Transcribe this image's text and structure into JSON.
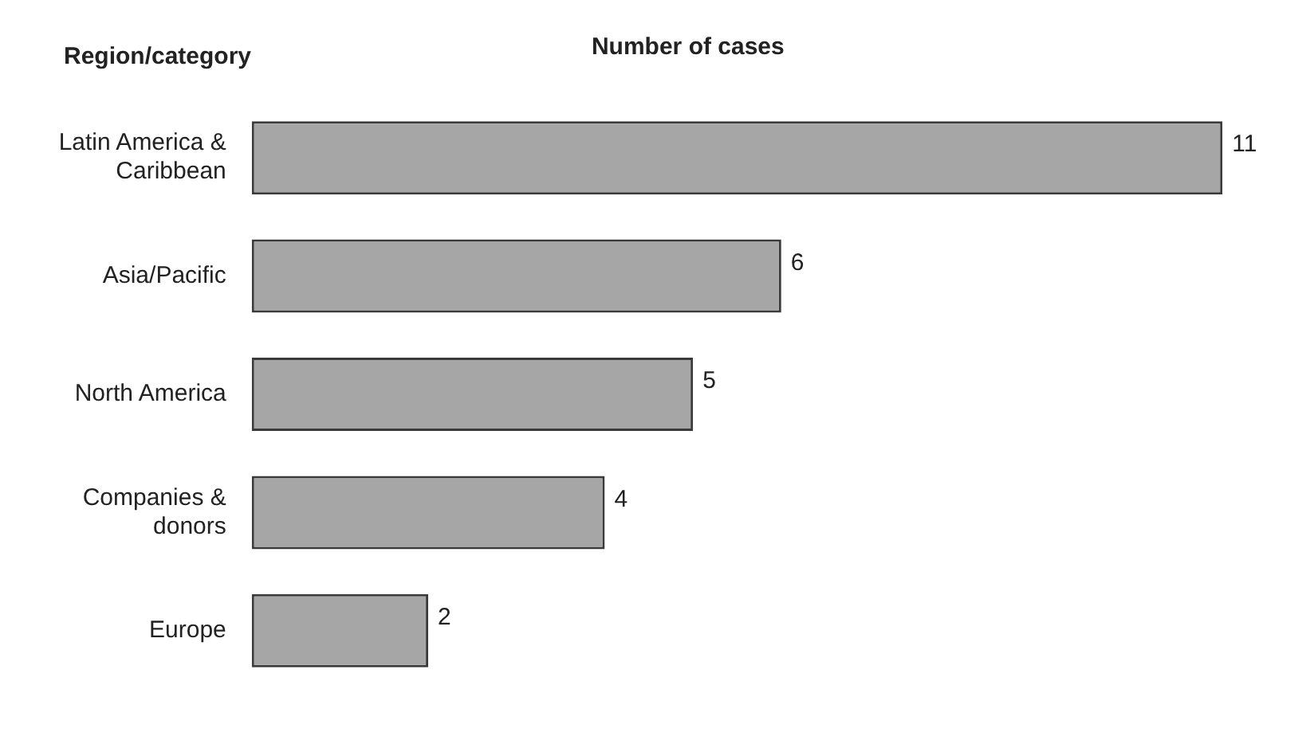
{
  "chart_data": {
    "type": "bar",
    "orientation": "horizontal",
    "title": "Number of cases",
    "ylabel": "Region/category",
    "categories": [
      "Latin America & Caribbean",
      "Asia/Pacific",
      "North America",
      "Companies & donors",
      "Europe"
    ],
    "values": [
      11,
      6,
      5,
      4,
      2
    ],
    "color": "#a6a6a6",
    "data_labels": true,
    "grid": false,
    "legend": false
  }
}
